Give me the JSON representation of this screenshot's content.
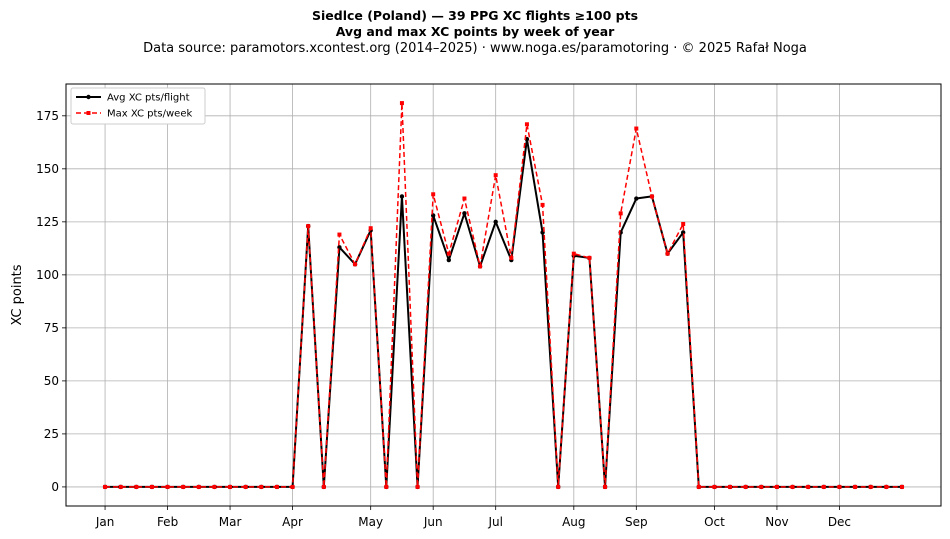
{
  "header": {
    "title": "Siedlce (Poland)  —  39 PPG XC flights ≥100 pts",
    "subtitle": "Avg and max XC points by week of year",
    "source": "Data source: paramotors.xcontest.org (2014–2025)  ·  www.noga.es/paramotoring  ·  © 2025 Rafał Noga"
  },
  "chart_data": {
    "type": "line",
    "ylabel": "XC points",
    "xlabel": "",
    "xlim": [
      -2.5,
      53.5
    ],
    "ylim": [
      -9,
      190
    ],
    "yticks": [
      0,
      25,
      50,
      75,
      100,
      125,
      150,
      175
    ],
    "xticks": [
      {
        "pos": 0,
        "label": "Jan"
      },
      {
        "pos": 4,
        "label": "Feb"
      },
      {
        "pos": 8,
        "label": "Mar"
      },
      {
        "pos": 12,
        "label": "Apr"
      },
      {
        "pos": 17,
        "label": "May"
      },
      {
        "pos": 21,
        "label": "Jun"
      },
      {
        "pos": 25,
        "label": "Jul"
      },
      {
        "pos": 30,
        "label": "Aug"
      },
      {
        "pos": 34,
        "label": "Sep"
      },
      {
        "pos": 39,
        "label": "Oct"
      },
      {
        "pos": 43,
        "label": "Nov"
      },
      {
        "pos": 47,
        "label": "Dec"
      }
    ],
    "grid": true,
    "legend_position": "top-left",
    "series": [
      {
        "name": "Avg XC pts/flight",
        "color": "#000000",
        "style": "solid",
        "marker": "circle",
        "values": [
          0,
          0,
          0,
          0,
          0,
          0,
          0,
          0,
          0,
          0,
          0,
          0,
          0,
          123,
          0,
          113,
          105,
          121,
          0,
          137,
          0,
          128,
          107,
          129,
          104,
          125,
          107,
          164,
          120,
          0,
          109,
          108,
          0,
          120,
          136,
          137,
          110,
          120,
          0,
          0,
          0,
          0,
          0,
          0,
          0,
          0,
          0,
          0,
          0,
          0,
          0,
          0
        ]
      },
      {
        "name": "Max XC pts/week",
        "color": "#ff0000",
        "style": "dashed",
        "marker": "square",
        "values": [
          0,
          0,
          0,
          0,
          0,
          0,
          0,
          0,
          0,
          0,
          0,
          0,
          0,
          123,
          0,
          119,
          105,
          122,
          0,
          181,
          0,
          138,
          110,
          136,
          104,
          147,
          108,
          171,
          133,
          0,
          110,
          108,
          0,
          129,
          169,
          137,
          110,
          124,
          0,
          0,
          0,
          0,
          0,
          0,
          0,
          0,
          0,
          0,
          0,
          0,
          0,
          0
        ]
      }
    ]
  }
}
